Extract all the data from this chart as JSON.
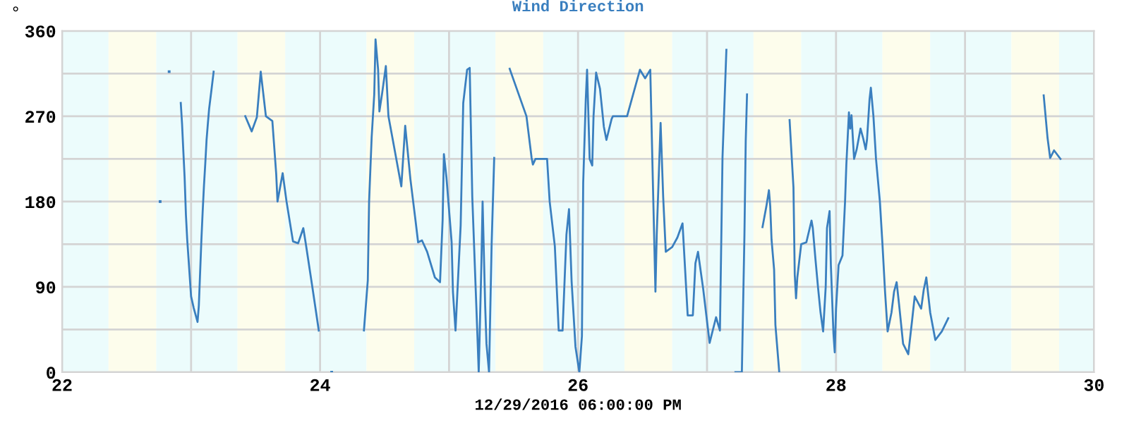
{
  "chart_data": {
    "type": "line",
    "title": "Wind Direction",
    "xlabel": "12/29/2016 06:00:00 PM",
    "ylabel": "°",
    "xlim": [
      22,
      30
    ],
    "xticks": [
      22,
      {
        "value": 23,
        "label": null
      },
      24,
      {
        "value": 25,
        "label": null
      },
      26,
      {
        "value": 27,
        "label": null
      },
      28,
      {
        "value": 29,
        "label": null
      },
      30
    ],
    "ylim": [
      0,
      360
    ],
    "yticks": [
      0,
      {
        "value": 45,
        "label": null
      },
      90,
      {
        "value": 135,
        "label": null
      },
      180,
      {
        "value": 225,
        "label": null
      },
      270,
      {
        "value": 315,
        "label": null
      },
      360
    ],
    "grid": true,
    "bands": [
      {
        "axis": "x",
        "from": 22,
        "to": 22.36,
        "color": "#ecfcfc"
      },
      {
        "axis": "x",
        "from": 22.36,
        "to": 22.73,
        "color": "#fdfdec"
      },
      {
        "axis": "x",
        "from": 22.73,
        "to": 23.36,
        "color": "#ecfcfc"
      },
      {
        "axis": "x",
        "from": 23.36,
        "to": 23.73,
        "color": "#fdfdec"
      },
      {
        "axis": "x",
        "from": 23.73,
        "to": 24.36,
        "color": "#ecfcfc"
      },
      {
        "axis": "x",
        "from": 24.36,
        "to": 24.73,
        "color": "#fdfdec"
      },
      {
        "axis": "x",
        "from": 24.73,
        "to": 25.36,
        "color": "#ecfcfc"
      },
      {
        "axis": "x",
        "from": 25.36,
        "to": 25.73,
        "color": "#fdfdec"
      },
      {
        "axis": "x",
        "from": 25.73,
        "to": 26.36,
        "color": "#ecfcfc"
      },
      {
        "axis": "x",
        "from": 26.36,
        "to": 26.73,
        "color": "#fdfdec"
      },
      {
        "axis": "x",
        "from": 26.73,
        "to": 27.36,
        "color": "#ecfcfc"
      },
      {
        "axis": "x",
        "from": 27.36,
        "to": 27.73,
        "color": "#fdfdec"
      },
      {
        "axis": "x",
        "from": 27.73,
        "to": 28.36,
        "color": "#ecfcfc"
      },
      {
        "axis": "x",
        "from": 28.36,
        "to": 28.73,
        "color": "#fdfdec"
      },
      {
        "axis": "x",
        "from": 28.73,
        "to": 29.36,
        "color": "#ecfcfc"
      },
      {
        "axis": "x",
        "from": 29.36,
        "to": 29.73,
        "color": "#fdfdec"
      },
      {
        "axis": "x",
        "from": 29.73,
        "to": 30,
        "color": "#ecfcfc"
      }
    ],
    "series": [
      {
        "color": "#3a7fbf",
        "marker": "none",
        "line_style": "solid",
        "x": [
          22.92,
          22.93,
          22.94,
          22.95,
          22.96,
          22.97,
          22.98,
          22.99,
          23.0,
          23.02,
          23.04,
          23.05,
          23.06,
          23.07,
          23.08,
          23.09,
          23.1,
          23.11,
          23.12,
          23.13,
          23.14,
          23.16,
          23.175,
          23.3,
          23.42,
          23.47,
          23.51,
          23.54,
          23.58,
          23.63,
          23.66,
          23.67,
          23.71,
          23.74,
          23.79,
          23.83,
          23.87,
          23.89,
          23.94,
          23.99,
          24.2,
          24.34,
          24.37,
          24.38,
          24.4,
          24.42,
          24.43,
          24.45,
          24.46,
          24.48,
          24.51,
          24.53,
          24.58,
          24.63,
          24.66,
          24.7,
          24.74,
          24.76,
          24.79,
          24.83,
          24.89,
          24.93,
          24.95,
          24.96,
          24.98,
          25.02,
          25.03,
          25.05,
          25.09,
          25.11,
          25.14,
          25.16,
          25.18,
          25.22,
          25.23,
          25.25,
          25.26,
          25.28,
          25.29,
          25.31,
          25.33,
          25.35,
          25.4,
          25.47,
          25.6,
          25.64,
          25.65,
          25.67,
          25.76,
          25.78,
          25.82,
          25.85,
          25.88,
          25.91,
          25.93,
          25.95,
          25.98,
          26.01,
          26.03,
          26.04,
          26.06,
          26.07,
          26.09,
          26.11,
          26.12,
          26.14,
          26.17,
          26.2,
          26.22,
          26.26,
          26.27,
          26.38,
          26.48,
          26.52,
          26.56,
          26.58,
          26.6,
          26.61,
          26.64,
          26.66,
          26.68,
          26.73,
          26.77,
          26.81,
          26.85,
          26.89,
          26.91,
          26.93,
          26.97,
          27.02,
          27.07,
          27.1,
          27.12,
          27.15,
          27.18,
          27.22,
          27.27,
          27.29,
          27.3,
          27.31,
          27.37,
          27.43,
          27.46,
          27.48,
          27.49,
          27.5,
          27.52,
          27.53,
          27.56,
          27.6,
          27.64,
          27.65,
          27.67,
          27.68,
          27.69,
          27.7,
          27.73,
          27.77,
          27.81,
          27.82,
          27.84,
          27.86,
          27.88,
          27.9,
          27.92,
          27.93,
          27.95,
          27.96,
          27.98,
          27.99,
          28.0,
          28.02,
          28.05,
          28.07,
          28.08,
          28.1,
          28.11,
          28.12,
          28.14,
          28.16,
          28.19,
          28.21,
          28.23,
          28.24,
          28.26,
          28.27,
          28.29,
          28.31,
          28.34,
          28.36,
          28.38,
          28.4,
          28.43,
          28.45,
          28.47,
          28.49,
          28.52,
          28.56,
          28.59,
          28.61,
          28.66,
          28.68,
          28.7,
          28.73,
          28.77,
          28.82,
          28.87,
          29.2,
          29.61,
          29.64,
          29.66,
          29.69,
          29.74
        ],
        "values": [
          284,
          262,
          233,
          205,
          166,
          140,
          120,
          100,
          80,
          68,
          58,
          53,
          70,
          105,
          140,
          170,
          197,
          220,
          245,
          262,
          278,
          300,
          317,
          null,
          270,
          254,
          269,
          317,
          270,
          265,
          209,
          180,
          210,
          180,
          138,
          136,
          152,
          135,
          90,
          44,
          null,
          44,
          97,
          180,
          248,
          293,
          351,
          319,
          275,
          293,
          323,
          270,
          233,
          196,
          260,
          204,
          160,
          137,
          139,
          127,
          100,
          95,
          160,
          230,
          205,
          137,
          85,
          44,
          155,
          284,
          319,
          321,
          185,
          38,
          0,
          110,
          180,
          70,
          30,
          0,
          135,
          226,
          null,
          320,
          270,
          226,
          219,
          225,
          225,
          180,
          133,
          44,
          44,
          145,
          172,
          96,
          27,
          0,
          38,
          200,
          288,
          319,
          225,
          218,
          270,
          316,
          299,
          259,
          245,
          267,
          270,
          270,
          319,
          310,
          319,
          201,
          85,
          145,
          263,
          185,
          127,
          132,
          142,
          157,
          60,
          60,
          115,
          127,
          88,
          31,
          58,
          44,
          227,
          340,
          null,
          0,
          0,
          145,
          244,
          293,
          null,
          153,
          175,
          192,
          175,
          140,
          108,
          50,
          0,
          null,
          266,
          242,
          195,
          103,
          78,
          100,
          135,
          137,
          160,
          152,
          120,
          90,
          63,
          43,
          90,
          152,
          170,
          113,
          41,
          21,
          67,
          113,
          123,
          180,
          219,
          274,
          257,
          271,
          225,
          235,
          257,
          247,
          235,
          245,
          288,
          300,
          270,
          225,
          180,
          135,
          85,
          43,
          63,
          85,
          95,
          70,
          30,
          19,
          55,
          80,
          67,
          87,
          100,
          63,
          34,
          43,
          57,
          null,
          292,
          247,
          226,
          234,
          225
        ]
      },
      {
        "type": "scatter",
        "color": "#3a7fbf",
        "marker": "square",
        "x": [
          22.76,
          22.83,
          24.09
        ],
        "values": [
          180,
          317,
          0
        ]
      }
    ]
  }
}
